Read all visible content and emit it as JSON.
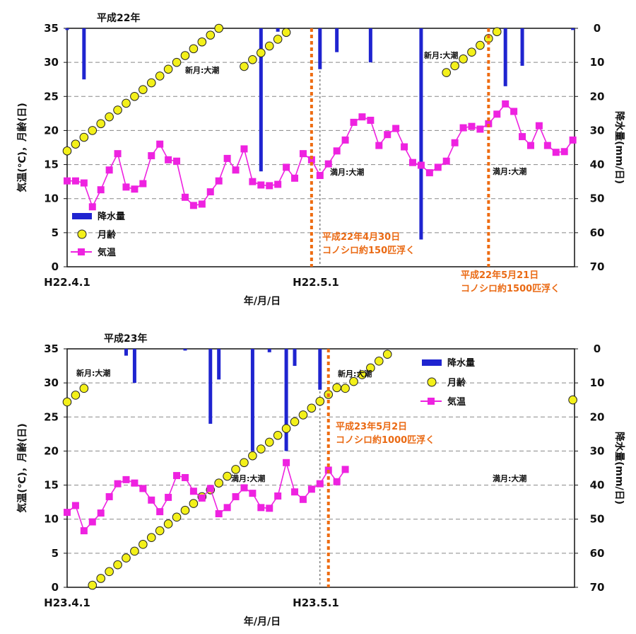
{
  "chart_data": [
    {
      "type": "line",
      "title": "平成22年",
      "xlabel": "年/月/日",
      "ylabel_left": "気温(℃)，月齢(日)",
      "ylabel_right": "降水量(mm/日)",
      "x_tick_labels": [
        "H22.4.1",
        "H22.5.1"
      ],
      "xlim_days": [
        1,
        61
      ],
      "ylim_left": [
        0,
        35
      ],
      "yticks_left": [
        0,
        5,
        10,
        15,
        20,
        25,
        30,
        35
      ],
      "ylim_right_inverted": [
        0,
        70
      ],
      "yticks_right": [
        0,
        10,
        20,
        30,
        40,
        50,
        60,
        70
      ],
      "grid": "horizontal dashed",
      "legend_position": "bottom-left",
      "legend": [
        "降水量",
        "月齢",
        "気温"
      ],
      "series": [
        {
          "name": "降水量",
          "kind": "bar",
          "color": "#1f24d0",
          "x": [
            1,
            3,
            24,
            26,
            31,
            33,
            37,
            43,
            52,
            53,
            55,
            61,
            83,
            86,
            93,
            96,
            99,
            100,
            101,
            103,
            106
          ],
          "values": [
            0.5,
            15,
            42,
            1,
            12,
            7,
            10,
            62,
            0.5,
            17,
            11,
            0.5,
            36,
            1,
            0.5,
            8,
            37,
            5,
            21,
            36,
            8
          ]
        },
        {
          "name": "月齢",
          "kind": "scatter",
          "color": "#f3f01a",
          "x": [
            1,
            22,
            46,
            76,
            100
          ],
          "values": [
            17,
            29.4,
            28.5,
            0.2,
            17
          ],
          "note": "each dot = one day; age rises by 1 per day"
        },
        {
          "name": "気温",
          "kind": "line",
          "color": "#ee22e0",
          "x": [
            1,
            2,
            3,
            4,
            5,
            6,
            7,
            8,
            9,
            10,
            11,
            12,
            13,
            14,
            15,
            16,
            17,
            18,
            19,
            20,
            21,
            22,
            23,
            24,
            25,
            26,
            27,
            28,
            29,
            30,
            31,
            32,
            33,
            34,
            35,
            36,
            37,
            38,
            39,
            40,
            41,
            42,
            43,
            44,
            45,
            46,
            47,
            48,
            49,
            50,
            51,
            52,
            53,
            54,
            55,
            56,
            57,
            58,
            59,
            60,
            61
          ],
          "values": [
            12.6,
            12.6,
            12.3,
            8.8,
            11.3,
            14.2,
            16.6,
            11.7,
            11.4,
            12.2,
            16.3,
            18.0,
            15.7,
            15.5,
            10.2,
            9.0,
            9.2,
            11.0,
            12.6,
            15.9,
            14.2,
            17.3,
            12.5,
            12.0,
            11.9,
            12.1,
            14.6,
            13.0,
            16.6,
            15.7,
            13.4,
            15.1,
            17.0,
            18.6,
            21.2,
            22.0,
            21.5,
            17.8,
            19.4,
            20.3,
            17.6,
            15.3,
            14.9,
            13.8,
            14.6,
            15.5,
            18.2,
            20.4,
            20.6,
            20.2,
            21.0,
            22.4,
            23.9,
            22.8,
            19.1,
            17.8,
            20.7,
            17.8,
            16.8,
            16.9,
            18.6
          ]
        }
      ],
      "annotations": [
        {
          "text": "新月:大潮"
        },
        {
          "text": "新月:大潮"
        },
        {
          "text": "満月:大潮"
        },
        {
          "text": "満月:大潮"
        }
      ],
      "events": [
        {
          "x": 30,
          "lines": [
            "平成22年4月30日",
            "コノシロ約150匹浮く"
          ]
        },
        {
          "x": 51,
          "lines": [
            "平成22年5月21日",
            "コノシロ約1500匹浮く"
          ]
        }
      ]
    },
    {
      "type": "line",
      "title": "平成23年",
      "xlabel": "年/月/日",
      "ylabel_left": "気温(℃)，月齢(日)",
      "ylabel_right": "降水量(mm/日)",
      "x_tick_labels": [
        "H23.4.1",
        "H23.5.1"
      ],
      "xlim_days": [
        1,
        61
      ],
      "ylim_left": [
        0,
        35
      ],
      "yticks_left": [
        0,
        5,
        10,
        15,
        20,
        25,
        30,
        35
      ],
      "ylim_right_inverted": [
        0,
        70
      ],
      "yticks_right": [
        0,
        10,
        20,
        30,
        40,
        50,
        60,
        70
      ],
      "grid": "horizontal dashed",
      "legend_position": "top-right",
      "legend": [
        "降水量",
        "月齢",
        "気温"
      ],
      "series": [
        {
          "name": "降水量",
          "kind": "bar",
          "color": "#1f24d0",
          "x": [
            8,
            9,
            15,
            18,
            19,
            23,
            25,
            27,
            28,
            31
          ],
          "values": [
            2,
            10,
            0.5,
            22,
            9,
            30,
            1,
            30,
            5,
            12
          ],
          "x_days": [
            8,
            9,
            15,
            18,
            19,
            23,
            25,
            27,
            28,
            31
          ]
        },
        {
          "name": "月齢",
          "kind": "scatter",
          "color": "#f3f01a",
          "x": [
            1,
            3,
            4,
            34,
            61
          ],
          "values": [
            27.2,
            29.2,
            0.3,
            29.2,
            27.5
          ],
          "note": "each dot = one day; age rises by 1 per day"
        },
        {
          "name": "気温",
          "kind": "line",
          "color": "#ee22e0",
          "x": [
            1,
            2,
            3,
            4,
            5,
            6,
            7,
            8,
            9,
            10,
            11,
            12,
            13,
            14,
            15,
            16,
            17,
            18,
            19,
            20,
            21,
            22,
            23,
            24,
            25,
            26,
            27,
            28,
            29,
            30,
            31,
            32,
            33,
            34
          ],
          "values": [
            11.0,
            12.0,
            8.3,
            9.6,
            10.9,
            13.3,
            15.2,
            15.8,
            15.3,
            14.5,
            12.8,
            11.1,
            13.2,
            16.4,
            16.1,
            14.1,
            13.1,
            14.5,
            10.8,
            11.7,
            13.3,
            14.6,
            13.8,
            11.7,
            11.6,
            13.4,
            18.3,
            14.0,
            12.9,
            14.4,
            15.2,
            17.2,
            15.5,
            17.3
          ]
        }
      ],
      "annotations": [
        {
          "text": "新月:大潮"
        },
        {
          "text": "新月:大潮"
        },
        {
          "text": "満月:大潮"
        },
        {
          "text": "満月:大潮"
        }
      ],
      "events": [
        {
          "x": 32,
          "lines": [
            "平成23年5月2日",
            "コノシロ約1000匹浮く"
          ]
        }
      ]
    }
  ]
}
